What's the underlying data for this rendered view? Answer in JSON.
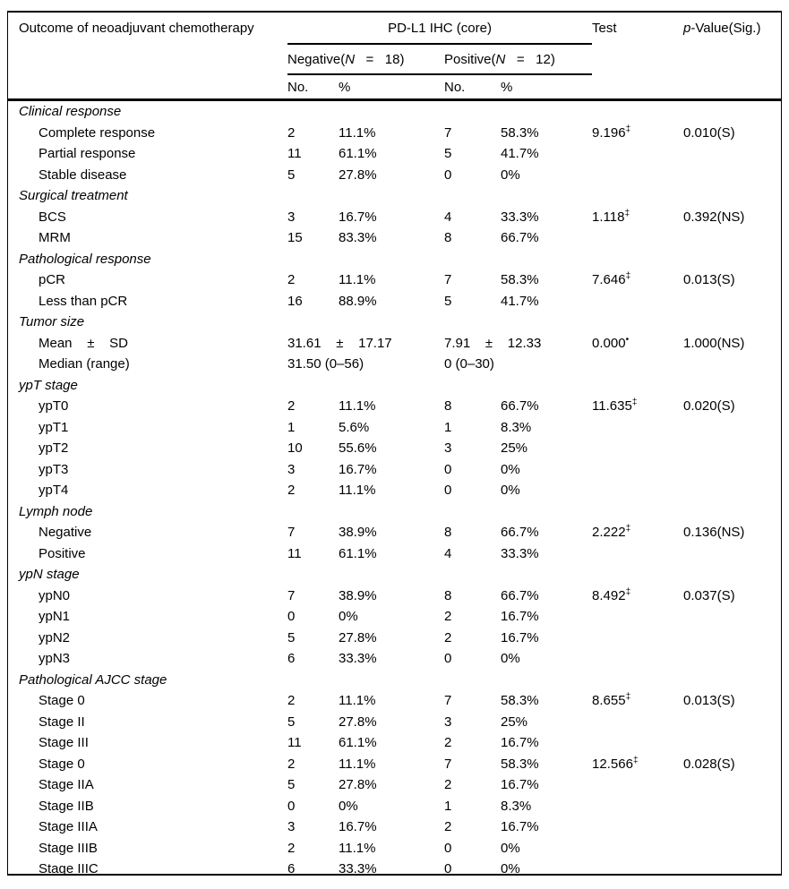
{
  "page": {
    "background": "#ffffff",
    "text_color": "#000000",
    "rule_color": "#000000"
  },
  "table": {
    "header": {
      "outcome_label": "Outcome of neoadjuvant chemotherapy",
      "group_label": "PD-L1 IHC (core)",
      "test_label": "Test",
      "pvalue_italic": "p",
      "pvalue_rest": "-Value(Sig.)",
      "negative": {
        "pre": "Negative(",
        "n": "N",
        "post": "   =   18)"
      },
      "positive": {
        "pre": "Positive(",
        "n": "N",
        "post": "   =   12)"
      },
      "no_label": "No.",
      "pct_label": "%"
    },
    "rows": [
      {
        "type": "section",
        "label": "Clinical response"
      },
      {
        "type": "data",
        "label": "Complete response",
        "neg_no": "2",
        "neg_pct": "11.1%",
        "pos_no": "7",
        "pos_pct": "58.3%",
        "test": "9.196",
        "test_sup": "‡",
        "p": "0.010(S)"
      },
      {
        "type": "data",
        "label": "Partial response",
        "neg_no": "11",
        "neg_pct": "61.1%",
        "pos_no": "5",
        "pos_pct": "41.7%",
        "test": "",
        "test_sup": "",
        "p": ""
      },
      {
        "type": "data",
        "label": "Stable disease",
        "neg_no": "5",
        "neg_pct": "27.8%",
        "pos_no": "0",
        "pos_pct": "0%",
        "test": "",
        "test_sup": "",
        "p": ""
      },
      {
        "type": "section",
        "label": "Surgical treatment"
      },
      {
        "type": "data",
        "label": "BCS",
        "neg_no": "3",
        "neg_pct": "16.7%",
        "pos_no": "4",
        "pos_pct": "33.3%",
        "test": "1.118",
        "test_sup": "‡",
        "p": "0.392(NS)"
      },
      {
        "type": "data",
        "label": "MRM",
        "neg_no": "15",
        "neg_pct": "83.3%",
        "pos_no": "8",
        "pos_pct": "66.7%",
        "test": "",
        "test_sup": "",
        "p": ""
      },
      {
        "type": "section",
        "label": "Pathological response"
      },
      {
        "type": "data",
        "label": "pCR",
        "neg_no": "2",
        "neg_pct": "11.1%",
        "pos_no": "7",
        "pos_pct": "58.3%",
        "test": "7.646",
        "test_sup": "‡",
        "p": "0.013(S)"
      },
      {
        "type": "data",
        "label": "Less than pCR",
        "neg_no": "16",
        "neg_pct": "88.9%",
        "pos_no": "5",
        "pos_pct": "41.7%",
        "test": "",
        "test_sup": "",
        "p": ""
      },
      {
        "type": "section",
        "label": "Tumor size"
      },
      {
        "type": "span",
        "label": "Mean    ±    SD",
        "neg": "31.61    ±    17.17",
        "pos": "7.91    ±    12.33",
        "test": "0.000",
        "test_sup": "•",
        "p": "1.000(NS)",
        "align": "left"
      },
      {
        "type": "span",
        "label": "Median (range)",
        "neg": "31.50 (0–56)",
        "pos": "0 (0–30)",
        "test": "",
        "test_sup": "",
        "p": "",
        "align": "center"
      },
      {
        "type": "section",
        "label": "ypT stage"
      },
      {
        "type": "data",
        "label": "ypT0",
        "neg_no": "2",
        "neg_pct": "11.1%",
        "pos_no": "8",
        "pos_pct": "66.7%",
        "test": "11.635",
        "test_sup": "‡",
        "p": "0.020(S)"
      },
      {
        "type": "data",
        "label": "ypT1",
        "neg_no": "1",
        "neg_pct": "5.6%",
        "pos_no": "1",
        "pos_pct": "8.3%",
        "test": "",
        "test_sup": "",
        "p": ""
      },
      {
        "type": "data",
        "label": "ypT2",
        "neg_no": "10",
        "neg_pct": "55.6%",
        "pos_no": "3",
        "pos_pct": "25%",
        "test": "",
        "test_sup": "",
        "p": ""
      },
      {
        "type": "data",
        "label": "ypT3",
        "neg_no": "3",
        "neg_pct": "16.7%",
        "pos_no": "0",
        "pos_pct": "0%",
        "test": "",
        "test_sup": "",
        "p": ""
      },
      {
        "type": "data",
        "label": "ypT4",
        "neg_no": "2",
        "neg_pct": "11.1%",
        "pos_no": "0",
        "pos_pct": "0%",
        "test": "",
        "test_sup": "",
        "p": ""
      },
      {
        "type": "section",
        "label": "Lymph node"
      },
      {
        "type": "data",
        "label": "Negative",
        "neg_no": "7",
        "neg_pct": "38.9%",
        "pos_no": "8",
        "pos_pct": "66.7%",
        "test": "2.222",
        "test_sup": "‡",
        "p": "0.136(NS)"
      },
      {
        "type": "data",
        "label": "Positive",
        "neg_no": "11",
        "neg_pct": "61.1%",
        "pos_no": "4",
        "pos_pct": "33.3%",
        "test": "",
        "test_sup": "",
        "p": ""
      },
      {
        "type": "section",
        "label": "ypN stage"
      },
      {
        "type": "data",
        "label": "ypN0",
        "neg_no": "7",
        "neg_pct": "38.9%",
        "pos_no": "8",
        "pos_pct": "66.7%",
        "test": "8.492",
        "test_sup": "‡",
        "p": "0.037(S)"
      },
      {
        "type": "data",
        "label": "ypN1",
        "neg_no": "0",
        "neg_pct": "0%",
        "pos_no": "2",
        "pos_pct": "16.7%",
        "test": "",
        "test_sup": "",
        "p": ""
      },
      {
        "type": "data",
        "label": "ypN2",
        "neg_no": "5",
        "neg_pct": "27.8%",
        "pos_no": "2",
        "pos_pct": "16.7%",
        "test": "",
        "test_sup": "",
        "p": ""
      },
      {
        "type": "data",
        "label": "ypN3",
        "neg_no": "6",
        "neg_pct": "33.3%",
        "pos_no": "0",
        "pos_pct": "0%",
        "test": "",
        "test_sup": "",
        "p": ""
      },
      {
        "type": "section",
        "label": "Pathological AJCC stage"
      },
      {
        "type": "data",
        "label": "Stage 0",
        "neg_no": "2",
        "neg_pct": "11.1%",
        "pos_no": "7",
        "pos_pct": "58.3%",
        "test": "8.655",
        "test_sup": "‡",
        "p": "0.013(S)"
      },
      {
        "type": "data",
        "label": "Stage II",
        "neg_no": "5",
        "neg_pct": "27.8%",
        "pos_no": "3",
        "pos_pct": "25%",
        "test": "",
        "test_sup": "",
        "p": ""
      },
      {
        "type": "data",
        "label": "Stage III",
        "neg_no": "11",
        "neg_pct": "61.1%",
        "pos_no": "2",
        "pos_pct": "16.7%",
        "test": "",
        "test_sup": "",
        "p": ""
      },
      {
        "type": "data",
        "label": "Stage 0",
        "neg_no": "2",
        "neg_pct": "11.1%",
        "pos_no": "7",
        "pos_pct": "58.3%",
        "test": "12.566",
        "test_sup": "‡",
        "p": "0.028(S)"
      },
      {
        "type": "data",
        "label": "Stage IIA",
        "neg_no": "5",
        "neg_pct": "27.8%",
        "pos_no": "2",
        "pos_pct": "16.7%",
        "test": "",
        "test_sup": "",
        "p": ""
      },
      {
        "type": "data",
        "label": "Stage IIB",
        "neg_no": "0",
        "neg_pct": "0%",
        "pos_no": "1",
        "pos_pct": "8.3%",
        "test": "",
        "test_sup": "",
        "p": ""
      },
      {
        "type": "data",
        "label": "Stage IIIA",
        "neg_no": "3",
        "neg_pct": "16.7%",
        "pos_no": "2",
        "pos_pct": "16.7%",
        "test": "",
        "test_sup": "",
        "p": ""
      },
      {
        "type": "data",
        "label": "Stage IIIB",
        "neg_no": "2",
        "neg_pct": "11.1%",
        "pos_no": "0",
        "pos_pct": "0%",
        "test": "",
        "test_sup": "",
        "p": ""
      },
      {
        "type": "data",
        "label": "Stage IIIC",
        "neg_no": "6",
        "neg_pct": "33.3%",
        "pos_no": "0",
        "pos_pct": "0%",
        "test": "",
        "test_sup": "",
        "p": ""
      }
    ]
  }
}
